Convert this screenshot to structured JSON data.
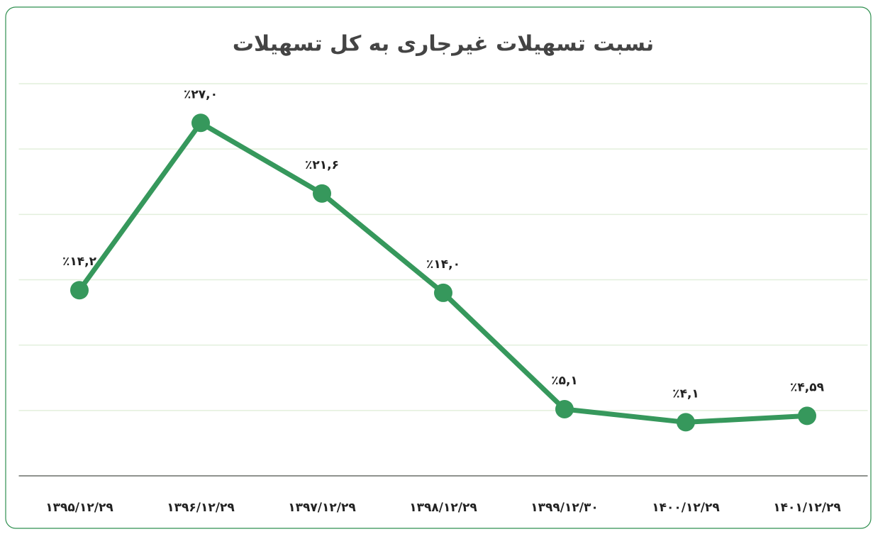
{
  "chart_data": {
    "type": "line",
    "title": "نسبت تسهیلات غیرجاری به کل تسهیلات",
    "categories": [
      "۱۳۹۵/۱۲/۲۹",
      "۱۳۹۶/۱۲/۲۹",
      "۱۳۹۷/۱۲/۲۹",
      "۱۳۹۸/۱۲/۲۹",
      "۱۳۹۹/۱۲/۳۰",
      "۱۴۰۰/۱۲/۲۹",
      "۱۴۰۱/۱۲/۲۹"
    ],
    "series": [
      {
        "color": "#36985c",
        "values": [
          14.2,
          27.0,
          21.6,
          14.0,
          5.1,
          4.1,
          4.59
        ],
        "value_labels": [
          "٪۱۴,۲",
          "٪۲۷,۰",
          "٪۲۱,۶",
          "٪۱۴,۰",
          "٪۵,۱",
          "٪۴,۱",
          "٪۴,۵۹"
        ]
      }
    ],
    "ylim": [
      0,
      30
    ],
    "yticks": [
      0,
      5,
      10,
      15,
      20,
      25,
      30
    ],
    "grid": true
  }
}
